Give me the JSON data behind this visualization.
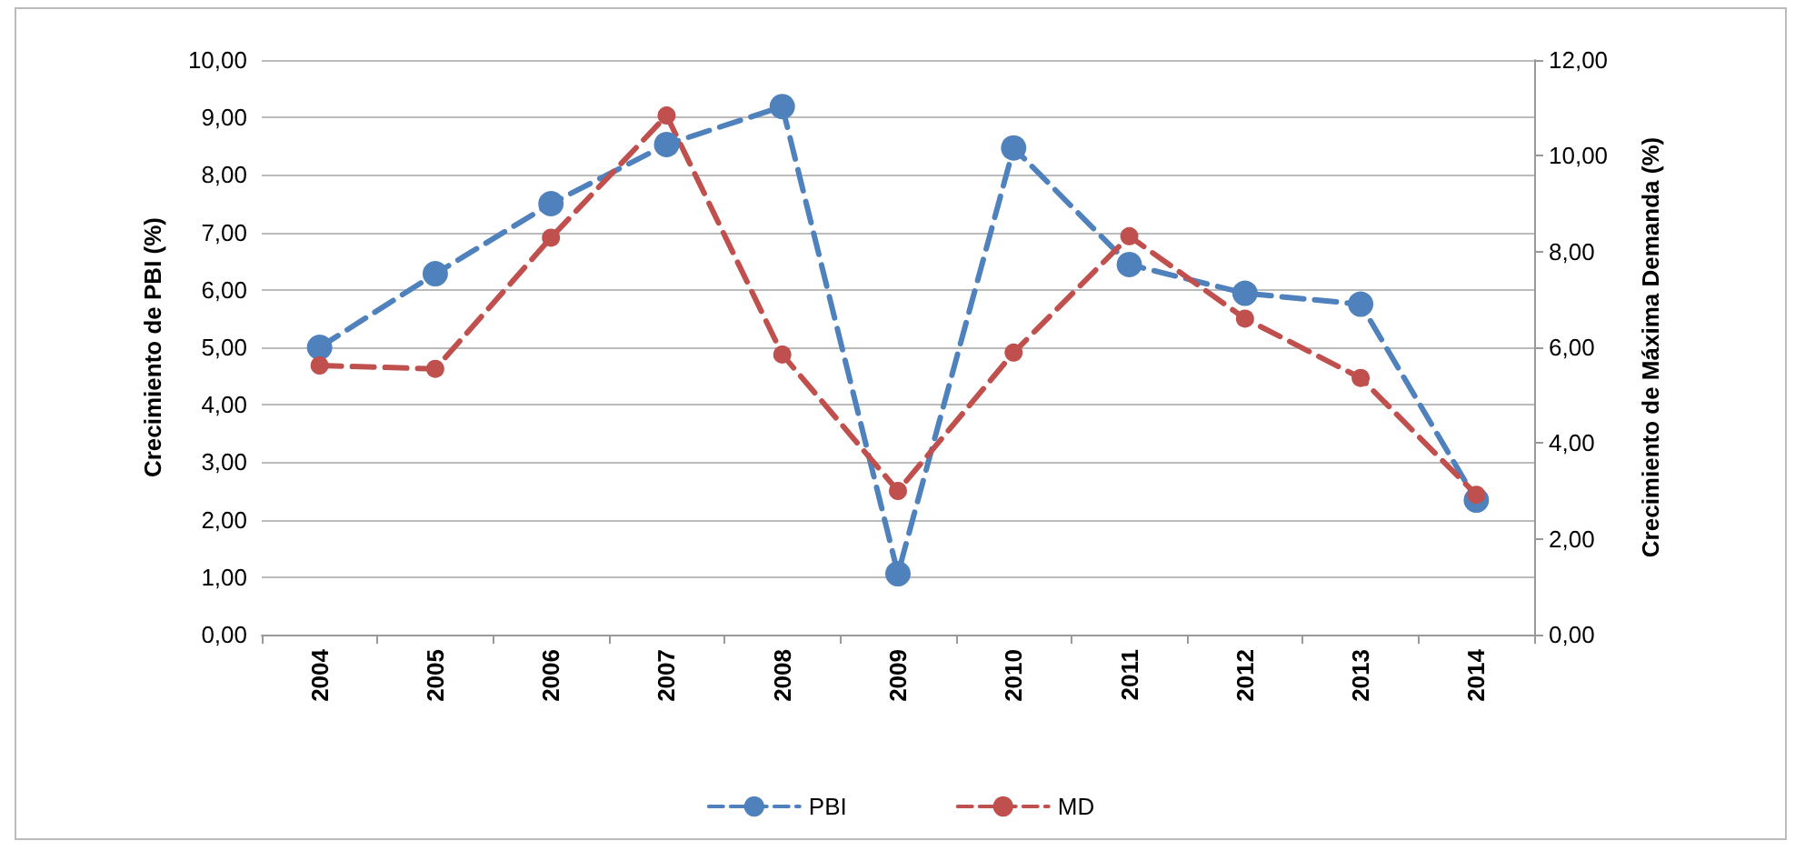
{
  "chart_data": {
    "type": "line",
    "ylabel": "Crecimiento de PBI (%)",
    "y2label": "Crecimiento de Máxima Demanda (%)",
    "categories": [
      "2004",
      "2005",
      "2006",
      "2007",
      "2008",
      "2009",
      "2010",
      "2011",
      "2012",
      "2013",
      "2014"
    ],
    "series": [
      {
        "name": "PBI",
        "color": "#4f81bd",
        "values": [
          5.0,
          6.28,
          7.5,
          8.53,
          9.19,
          1.06,
          8.47,
          6.44,
          5.94,
          5.75,
          2.34
        ]
      },
      {
        "name": "MD",
        "color": "#c0504d",
        "axis": "y2",
        "values": [
          5.62,
          5.55,
          8.29,
          10.84,
          5.85,
          3.0,
          5.89,
          8.32,
          6.6,
          5.36,
          2.92
        ]
      }
    ],
    "ylim": [
      0,
      10
    ],
    "yticks": [
      {
        "value": 0,
        "label": "0,00"
      },
      {
        "value": 1,
        "label": "1,00"
      },
      {
        "value": 2,
        "label": "2,00"
      },
      {
        "value": 3,
        "label": "3,00"
      },
      {
        "value": 4,
        "label": "4,00"
      },
      {
        "value": 5,
        "label": "5,00"
      },
      {
        "value": 6,
        "label": "6,00"
      },
      {
        "value": 7,
        "label": "7,00"
      },
      {
        "value": 8,
        "label": "8,00"
      },
      {
        "value": 9,
        "label": "9,00"
      },
      {
        "value": 10,
        "label": "10,00"
      }
    ],
    "y2lim": [
      0,
      12
    ],
    "y2ticks": [
      {
        "value": 0,
        "label": "0,00"
      },
      {
        "value": 2,
        "label": "2,00"
      },
      {
        "value": 4,
        "label": "4,00"
      },
      {
        "value": 6,
        "label": "6,00"
      },
      {
        "value": 8,
        "label": "8,00"
      },
      {
        "value": 10,
        "label": "10,00"
      },
      {
        "value": 12,
        "label": "12,00"
      }
    ],
    "grid": "y",
    "legend": "bottom",
    "marker": "circle",
    "line_style": "dashed"
  }
}
